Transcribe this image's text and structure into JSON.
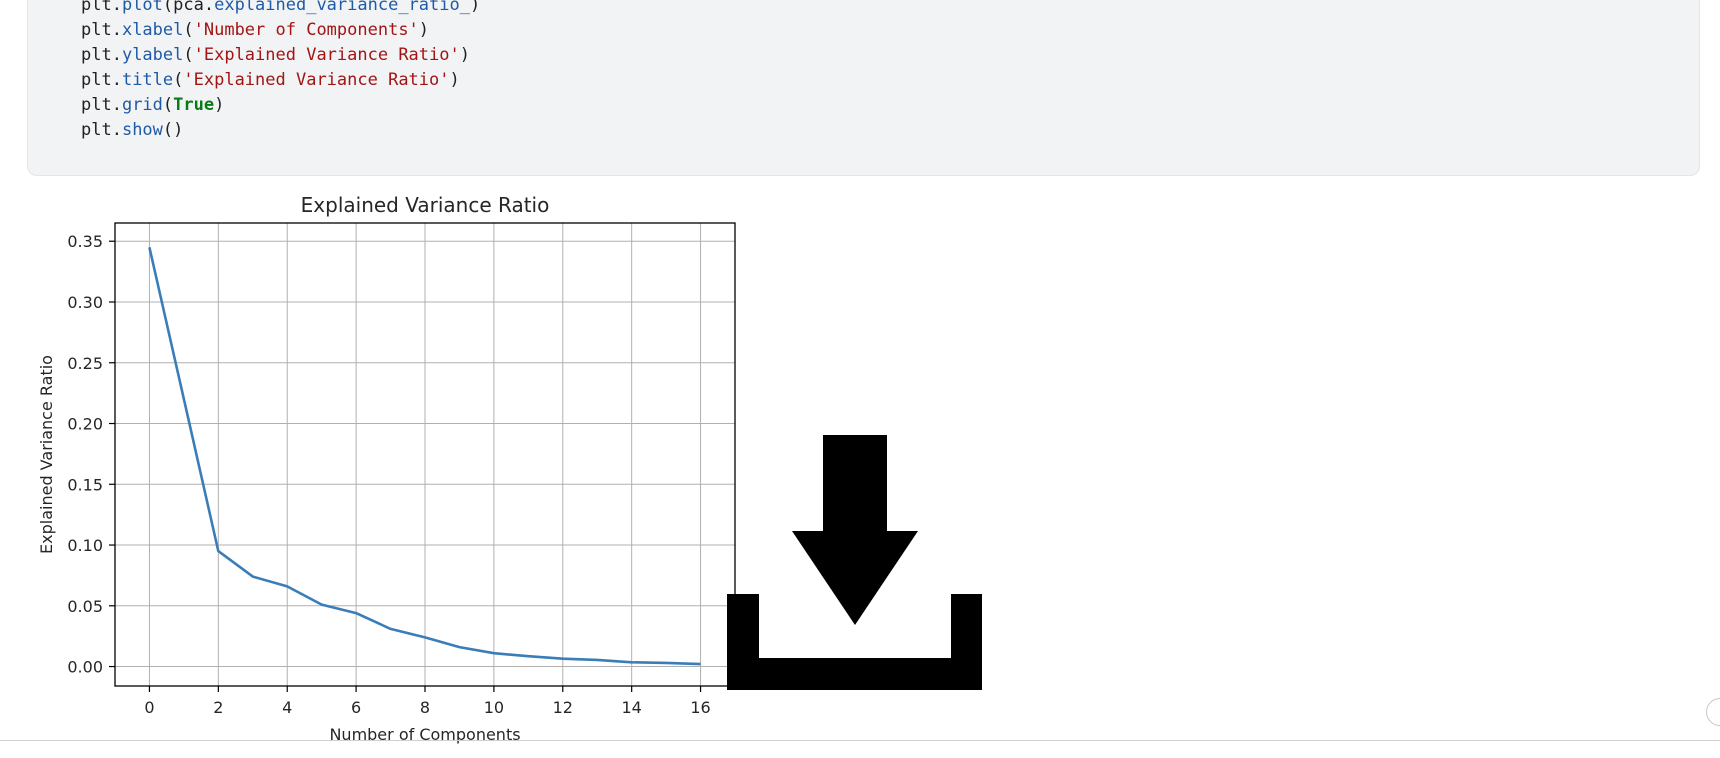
{
  "code_lines": [
    [
      "plt.",
      "plot",
      "(pca.",
      "explained_variance_ratio_",
      ")"
    ],
    [
      "plt.",
      "xlabel",
      "(",
      "'Number of Components'",
      ")"
    ],
    [
      "plt.",
      "ylabel",
      "(",
      "'Explained Variance Ratio'",
      ")"
    ],
    [
      "plt.",
      "title",
      "(",
      "'Explained Variance Ratio'",
      ")"
    ],
    [
      "plt.",
      "grid",
      "(",
      "True",
      ")"
    ],
    [
      "plt.",
      "show",
      "()"
    ]
  ],
  "download_icon": "download-icon",
  "chart_data": {
    "type": "line",
    "title": "Explained Variance Ratio",
    "xlabel": "Number of Components",
    "ylabel": "Explained Variance Ratio",
    "xlim": [
      -1,
      17
    ],
    "ylim": [
      -0.016,
      0.365
    ],
    "x_ticks": [
      0,
      2,
      4,
      6,
      8,
      10,
      12,
      14,
      16
    ],
    "y_ticks": [
      0.0,
      0.05,
      0.1,
      0.15,
      0.2,
      0.25,
      0.3,
      0.35
    ],
    "y_tick_labels": [
      "0.00",
      "0.05",
      "0.10",
      "0.15",
      "0.20",
      "0.25",
      "0.30",
      "0.35"
    ],
    "grid": true,
    "line_color": "#3a7db8",
    "series": [
      {
        "x": [
          0,
          1,
          2,
          3,
          4,
          5,
          6,
          7,
          8,
          9,
          10,
          11,
          12,
          13,
          14,
          15,
          16
        ],
        "values": [
          0.345,
          0.22,
          0.095,
          0.074,
          0.066,
          0.051,
          0.044,
          0.031,
          0.024,
          0.016,
          0.011,
          0.0085,
          0.0065,
          0.0055,
          0.0035,
          0.003,
          0.002
        ]
      }
    ]
  }
}
